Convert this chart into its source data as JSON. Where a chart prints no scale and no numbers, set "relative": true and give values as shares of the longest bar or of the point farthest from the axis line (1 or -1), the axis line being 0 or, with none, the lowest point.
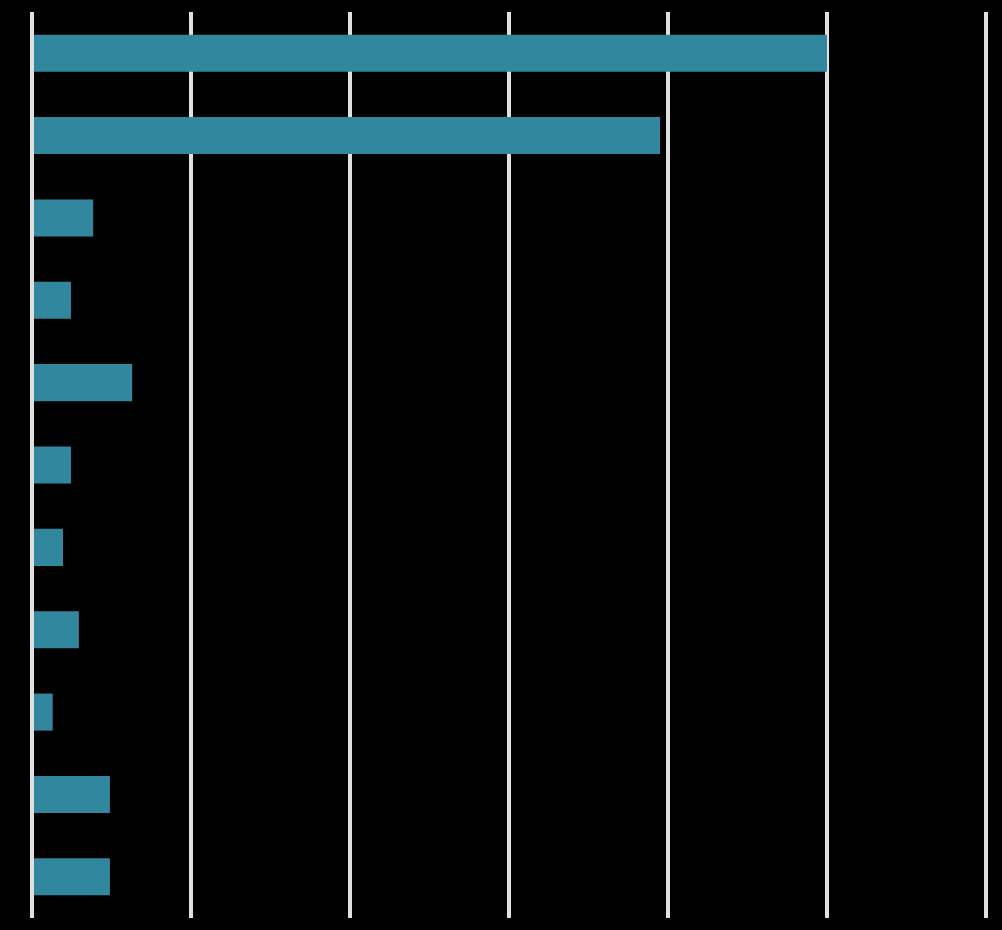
{
  "chart_data": {
    "type": "bar",
    "orientation": "horizontal",
    "relative": true,
    "grid": "x",
    "legend": false,
    "categories": [
      null,
      null,
      null,
      null,
      null,
      null,
      null,
      null,
      null,
      null,
      null
    ],
    "series": [
      {
        "color": "#31879e",
        "values": [
          1,
          0.79,
          0.077,
          0.049,
          0.126,
          0.049,
          0.039,
          0.059,
          0.026,
          0.098,
          0.098
        ]
      }
    ]
  }
}
